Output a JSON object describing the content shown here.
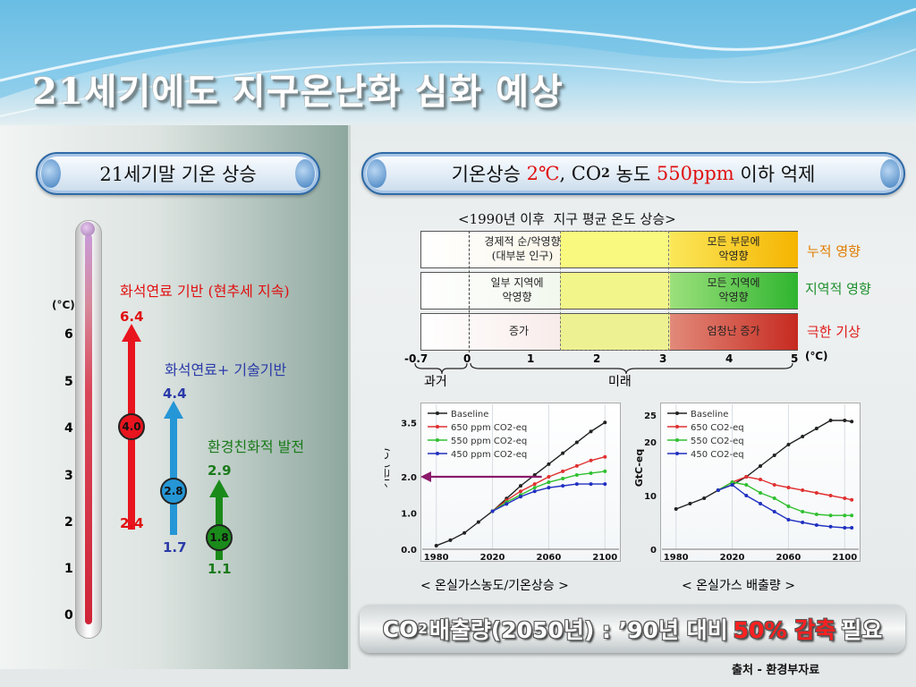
{
  "slide": {
    "title": "21세기에도 지구온난화 심화 예상",
    "source": "출처 - 환경부자료"
  },
  "left": {
    "pill_label": "21세기말 기온 상승",
    "unit": "(°C)",
    "axis_ticks": [
      "0",
      "1",
      "2",
      "3",
      "4",
      "5",
      "6"
    ],
    "scenarios": [
      {
        "label": "화석연료 기반 (현추세 지속)",
        "high": "6.4",
        "mid": "4.0",
        "low": "2.4",
        "color": "#e8141e"
      },
      {
        "label": "화석연료+ 기술기반",
        "high": "4.4",
        "mid": "2.8",
        "low": "1.7",
        "color": "#2596d6"
      },
      {
        "label": "환경친화적 발전",
        "high": "2.9",
        "mid": "1.8",
        "low": "1.1",
        "color": "#1a8a1a"
      }
    ]
  },
  "right": {
    "pill_prefix": "기온상승 ",
    "pill_temp": "2℃",
    "pill_co2": ", CO",
    "pill_co2_sub": "2",
    "pill_middle": " 농도 ",
    "pill_ppm": "550ppm",
    "pill_suffix": " 이하 억제",
    "impact_title": "<1990년 이후  지구 평균 온도 상승>",
    "rows": [
      {
        "left_text": "경제적 순/악영향\n(대부분 인구)",
        "right_text": "모든 부문에\n악영향",
        "side_label": "누적 영향",
        "side_color": "#e07b00"
      },
      {
        "left_text": "일부 지역에\n악영향",
        "right_text": "모든 지역에\n악영향",
        "side_label": "지역적 영향",
        "side_color": "#1f8f2f"
      },
      {
        "left_text": "증가",
        "right_text": "엄청난 증가",
        "side_label": "극한 기상",
        "side_color": "#e01818"
      }
    ],
    "scale_ticks": [
      "-0.7",
      "0",
      "1",
      "2",
      "3",
      "4",
      "5"
    ],
    "scale_unit": "(℃)",
    "past_label": "과거",
    "future_label": "미래"
  },
  "chart_data": [
    {
      "type": "line",
      "title": "< 온실가스농도/기온상승 >",
      "ylabel": "기온(℃)",
      "x_ticks": [
        "1980",
        "2020",
        "2060",
        "2100"
      ],
      "y_ticks": [
        "0.0",
        "1.0",
        "2.0",
        "3.5"
      ],
      "ylim": [
        0,
        4
      ],
      "xlim": [
        1970,
        2110
      ],
      "legend": "top-left",
      "series": [
        {
          "name": "Baseline",
          "color": "#222222",
          "x": [
            1980,
            1990,
            2000,
            2010,
            2020,
            2030,
            2040,
            2050,
            2060,
            2070,
            2080,
            2090,
            2100
          ],
          "y": [
            0.1,
            0.25,
            0.45,
            0.75,
            1.05,
            1.4,
            1.75,
            2.05,
            2.35,
            2.65,
            2.95,
            3.25,
            3.5
          ]
        },
        {
          "name": "650 ppm CO2-eq",
          "color": "#e03030",
          "x": [
            2020,
            2030,
            2040,
            2050,
            2060,
            2070,
            2080,
            2090,
            2100
          ],
          "y": [
            1.05,
            1.35,
            1.6,
            1.8,
            2.0,
            2.15,
            2.3,
            2.45,
            2.55
          ]
        },
        {
          "name": "550 ppm CO2-eq",
          "color": "#30c030",
          "x": [
            2020,
            2030,
            2040,
            2050,
            2060,
            2070,
            2080,
            2090,
            2100
          ],
          "y": [
            1.05,
            1.3,
            1.5,
            1.7,
            1.85,
            1.95,
            2.05,
            2.1,
            2.15
          ]
        },
        {
          "name": "450 ppm CO2-eq",
          "color": "#2030c0",
          "x": [
            2020,
            2030,
            2040,
            2050,
            2060,
            2070,
            2080,
            2090,
            2100
          ],
          "y": [
            1.05,
            1.25,
            1.45,
            1.6,
            1.7,
            1.75,
            1.8,
            1.8,
            1.8
          ]
        }
      ],
      "annotation": {
        "y": 2.0,
        "color": "#8b1a6b"
      }
    },
    {
      "type": "line",
      "title": "< 온실가스 배출량 >",
      "ylabel": "GtC-eq",
      "x_ticks": [
        "1980",
        "2020",
        "2060",
        "2100"
      ],
      "y_ticks": [
        "0",
        "10",
        "20",
        "25"
      ],
      "ylim": [
        0,
        27
      ],
      "xlim": [
        1970,
        2110
      ],
      "legend": "top-left",
      "series": [
        {
          "name": "Baseline",
          "color": "#222222",
          "x": [
            1980,
            1990,
            2000,
            2010,
            2020,
            2030,
            2040,
            2050,
            2060,
            2070,
            2080,
            2090,
            2100,
            2105
          ],
          "y": [
            7.5,
            8.5,
            9.5,
            11,
            12,
            13.5,
            15.5,
            17.5,
            19.5,
            21,
            22.5,
            24,
            24,
            23.8
          ]
        },
        {
          "name": "650 CO2-eq",
          "color": "#e03030",
          "x": [
            2010,
            2020,
            2030,
            2040,
            2050,
            2060,
            2070,
            2080,
            2090,
            2100,
            2105
          ],
          "y": [
            11,
            12.5,
            13.5,
            13,
            12,
            11.5,
            11,
            10.5,
            10,
            9.5,
            9.2
          ]
        },
        {
          "name": "550 CO2-eq",
          "color": "#30c030",
          "x": [
            2010,
            2020,
            2030,
            2040,
            2050,
            2060,
            2070,
            2080,
            2090,
            2100,
            2105
          ],
          "y": [
            11,
            12.5,
            12,
            10.5,
            9.5,
            8,
            7,
            6.5,
            6.3,
            6.3,
            6.3
          ]
        },
        {
          "name": "450 CO2-eq",
          "color": "#2030c0",
          "x": [
            2010,
            2020,
            2030,
            2040,
            2050,
            2060,
            2070,
            2080,
            2090,
            2100,
            2105
          ],
          "y": [
            11,
            12,
            10,
            8.5,
            7,
            5.5,
            5,
            4.5,
            4.2,
            4,
            4
          ]
        }
      ]
    }
  ],
  "banner": {
    "prefix": "CO",
    "sub": "2",
    "middle": "배출량(2050년) : ’90년 대비",
    "accent": "50% 감축",
    "suffix": "필요"
  }
}
